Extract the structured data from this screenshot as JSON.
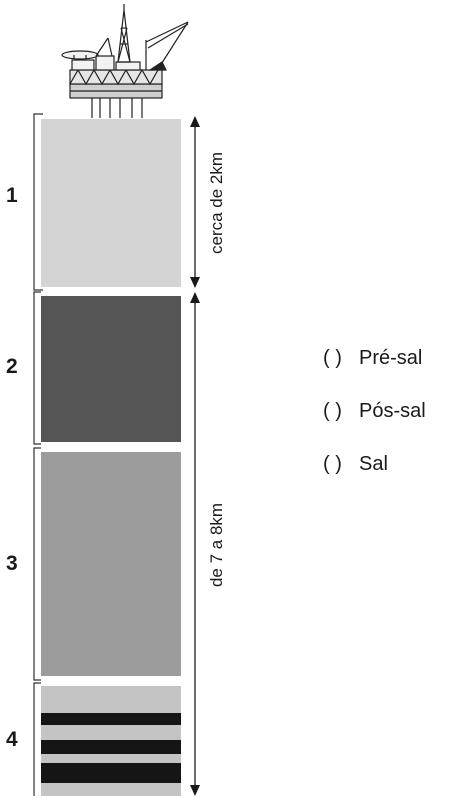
{
  "layers": [
    {
      "number": "1",
      "color": "#d4d4d4"
    },
    {
      "number": "2",
      "color": "#555555"
    },
    {
      "number": "3",
      "color": "#9c9c9c"
    },
    {
      "number": "4",
      "color": "#c4c4c4",
      "stripe_color": "#151515"
    }
  ],
  "dimensions": {
    "top": "cerca de 2km",
    "bottom": "de 7 a 8km"
  },
  "options": [
    {
      "blank": "(   )",
      "label": "Pré-sal"
    },
    {
      "blank": "(   )",
      "label": "Pós-sal"
    },
    {
      "blank": "(   )",
      "label": "Sal"
    }
  ],
  "icons": {
    "platform": "oil-platform-icon"
  },
  "colors": {
    "ink": "#1a1a1a",
    "background": "#ffffff"
  }
}
